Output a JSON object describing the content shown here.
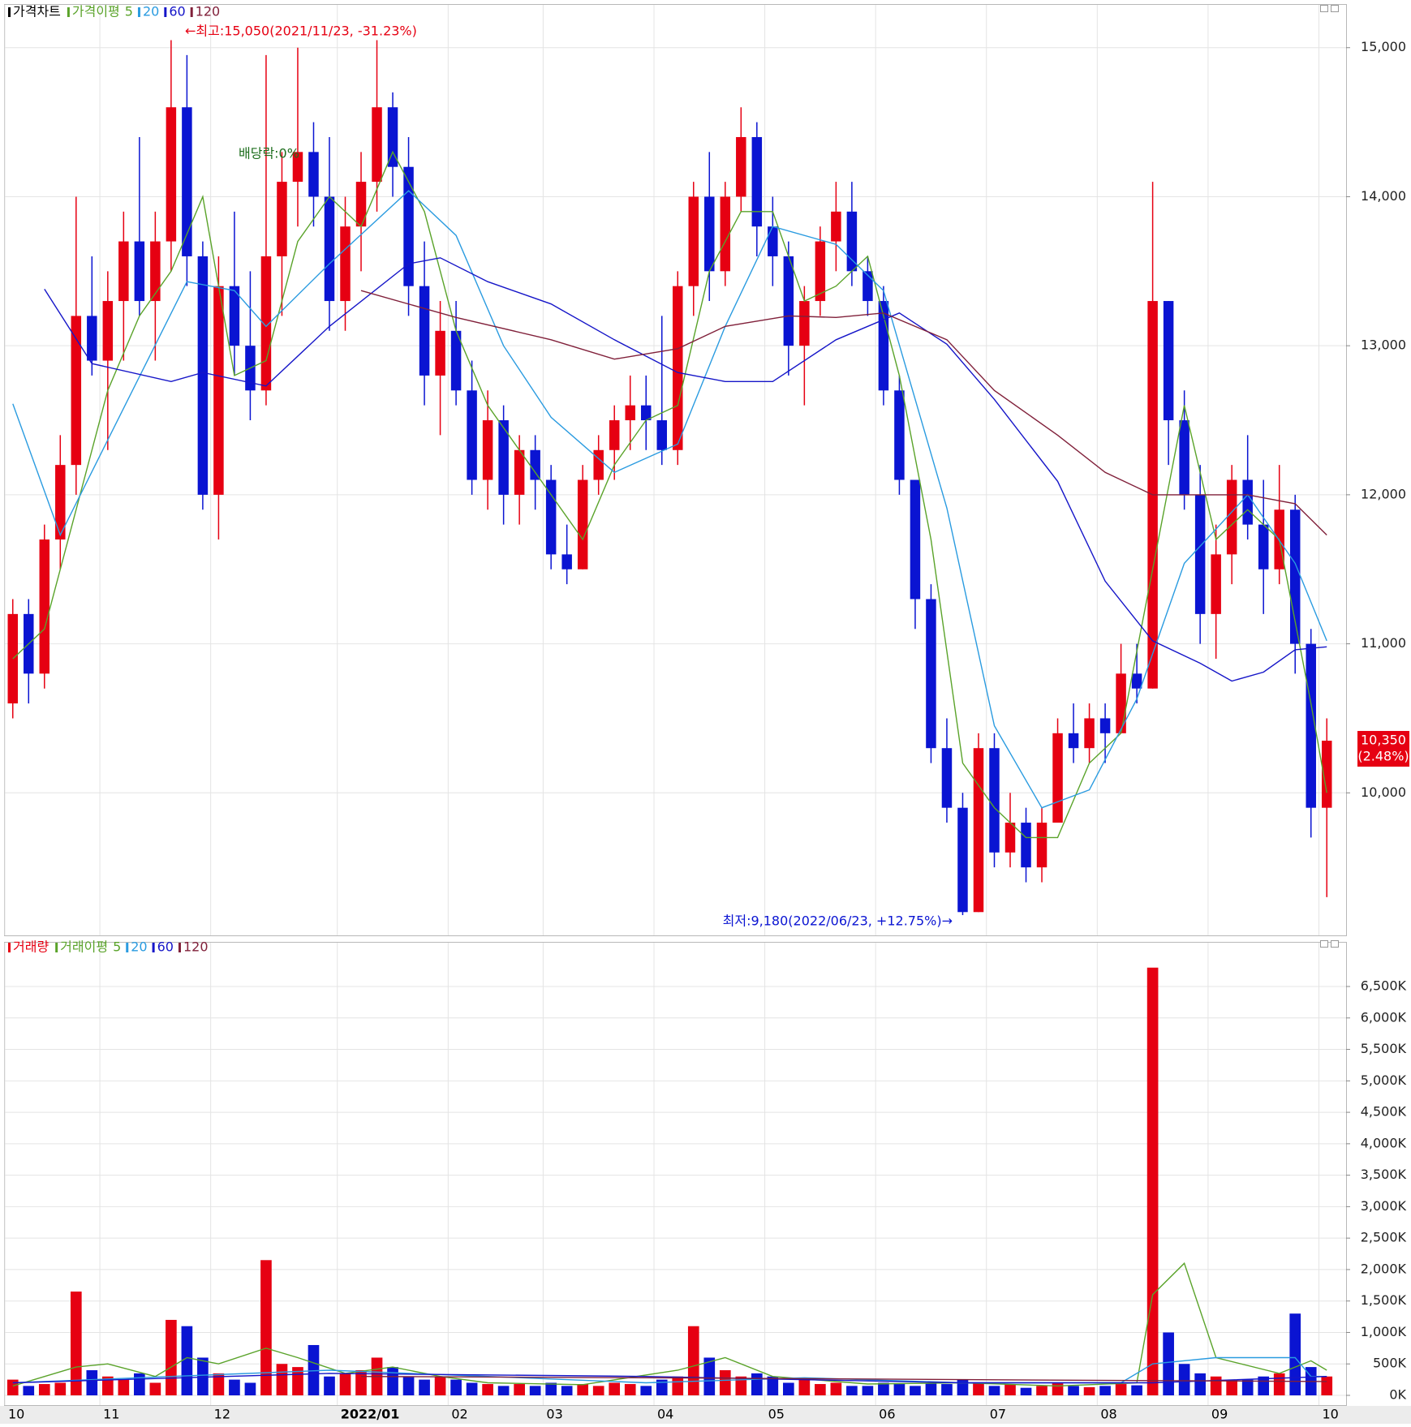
{
  "chart_data": [
    {
      "type": "candlestick",
      "title": "가격차트",
      "ma_title": "가격이평",
      "categories": [
        "10",
        null,
        null,
        null,
        null,
        null,
        "11",
        null,
        null,
        null,
        null,
        null,
        null,
        "12",
        null,
        null,
        null,
        null,
        null,
        null,
        null,
        "2022/01",
        null,
        null,
        null,
        null,
        null,
        null,
        "02",
        null,
        null,
        null,
        null,
        null,
        "03",
        null,
        null,
        null,
        null,
        null,
        null,
        "04",
        null,
        null,
        null,
        null,
        null,
        null,
        "05",
        null,
        null,
        null,
        null,
        null,
        null,
        "06",
        null,
        null,
        null,
        null,
        null,
        null,
        "07",
        null,
        null,
        null,
        null,
        null,
        null,
        "08",
        null,
        null,
        null,
        null,
        null,
        null,
        "09",
        null,
        null,
        null,
        null,
        null,
        null,
        "10"
      ],
      "open": [
        10600,
        11200,
        10800,
        11700,
        12200,
        13200,
        12900,
        13300,
        13700,
        13300,
        13700,
        14600,
        13600,
        12000,
        13400,
        13000,
        12700,
        13600,
        14100,
        14300,
        14000,
        13300,
        13800,
        14100,
        14600,
        14200,
        13400,
        12800,
        13100,
        12700,
        12100,
        12500,
        12000,
        12300,
        12100,
        11600,
        11500,
        12100,
        12300,
        12500,
        12600,
        12500,
        12300,
        13400,
        14000,
        13500,
        14000,
        14400,
        13800,
        13600,
        13000,
        13300,
        13700,
        13900,
        13500,
        13300,
        12700,
        12100,
        11300,
        10300,
        9900,
        9200,
        10300,
        9600,
        9800,
        9500,
        9800,
        10400,
        10300,
        10500,
        10400,
        10800,
        10700,
        13300,
        12500,
        12000,
        11200,
        11600,
        12100,
        11800,
        11500,
        11900,
        11000,
        9900
      ],
      "high": [
        11300,
        11300,
        11800,
        12400,
        14000,
        13600,
        13500,
        13900,
        14400,
        13900,
        15050,
        14950,
        13700,
        13600,
        13900,
        13500,
        14950,
        14300,
        15000,
        14500,
        14400,
        14000,
        14300,
        15050,
        14700,
        14400,
        13700,
        13300,
        13300,
        12900,
        12700,
        12600,
        12400,
        12400,
        12200,
        11800,
        12200,
        12400,
        12600,
        12800,
        12800,
        13200,
        13500,
        14100,
        14300,
        14100,
        14600,
        14500,
        14000,
        13700,
        13400,
        13800,
        14100,
        14100,
        13600,
        13400,
        12800,
        12100,
        11400,
        10500,
        10000,
        10400,
        10400,
        10000,
        9900,
        9900,
        10500,
        10600,
        10600,
        10600,
        11000,
        11000,
        14100,
        13300,
        12700,
        12200,
        11800,
        12200,
        12400,
        12100,
        12200,
        12000,
        11100,
        10500
      ],
      "low": [
        10500,
        10600,
        10700,
        11500,
        12000,
        12800,
        12300,
        12900,
        13200,
        12900,
        13500,
        13400,
        11900,
        11700,
        12800,
        12500,
        12600,
        13200,
        13800,
        13800,
        13100,
        13100,
        13500,
        13900,
        14000,
        13200,
        12600,
        12400,
        12600,
        12000,
        11900,
        11800,
        11800,
        11900,
        11500,
        11400,
        11500,
        12000,
        12100,
        12300,
        12300,
        12200,
        12200,
        13200,
        13300,
        13400,
        13900,
        13600,
        13400,
        12800,
        12600,
        13200,
        13500,
        13400,
        13200,
        12600,
        12000,
        11100,
        10200,
        9800,
        9180,
        9200,
        9500,
        9500,
        9400,
        9400,
        9800,
        10200,
        10200,
        10200,
        10400,
        10600,
        10700,
        12200,
        11900,
        11000,
        10900,
        11400,
        11700,
        11200,
        11400,
        10800,
        9700,
        9300
      ],
      "close": [
        11200,
        10800,
        11700,
        12200,
        13200,
        12900,
        13300,
        13700,
        13300,
        13700,
        14600,
        13600,
        12000,
        13400,
        13000,
        12700,
        13600,
        14100,
        14300,
        14000,
        13300,
        13800,
        14100,
        14600,
        14200,
        13400,
        12800,
        13100,
        12700,
        12100,
        12500,
        12000,
        12300,
        12100,
        11600,
        11500,
        12100,
        12300,
        12500,
        12600,
        12500,
        12300,
        13400,
        14000,
        13500,
        14000,
        14400,
        13800,
        13600,
        13000,
        13300,
        13700,
        13900,
        13500,
        13300,
        12700,
        12100,
        11300,
        10300,
        9900,
        9200,
        10300,
        9600,
        9800,
        9500,
        9800,
        10400,
        10300,
        10500,
        10400,
        10800,
        10700,
        13300,
        12500,
        12000,
        11200,
        11600,
        12100,
        11800,
        11500,
        11900,
        11000,
        9900,
        10350
      ],
      "up_color": "#e60012",
      "down_color": "#0a14d2",
      "series": [
        {
          "name": "5",
          "color": "#5aa32a",
          "x": [
            0,
            2,
            4,
            6,
            8,
            10,
            12,
            14,
            16,
            18,
            20,
            22,
            24,
            26,
            28,
            30,
            32,
            34,
            36,
            38,
            40,
            42,
            44,
            46,
            48,
            50,
            52,
            54,
            56,
            58,
            60,
            62,
            64,
            66,
            68,
            70,
            72,
            74,
            76,
            78,
            80,
            82,
            83
          ],
          "values": [
            10900,
            11100,
            11900,
            12700,
            13200,
            13500,
            14000,
            12800,
            12900,
            13700,
            14000,
            13800,
            14300,
            13900,
            13100,
            12600,
            12300,
            12000,
            11700,
            12200,
            12500,
            12600,
            13500,
            13900,
            13900,
            13300,
            13400,
            13600,
            12800,
            11700,
            10200,
            9900,
            9700,
            9700,
            10200,
            10400,
            11500,
            12600,
            11700,
            11900,
            11700,
            10600,
            10000
          ]
        },
        {
          "name": "20",
          "color": "#2a9be0",
          "x": [
            0,
            3,
            7,
            11,
            14,
            16,
            20,
            25,
            28,
            31,
            34,
            38,
            42,
            45,
            48,
            52,
            55,
            59,
            62,
            65,
            68,
            71,
            74,
            78,
            81,
            83
          ],
          "values": [
            12610,
            11730,
            12580,
            13430,
            13370,
            13130,
            13550,
            14040,
            13740,
            13000,
            12520,
            12150,
            12340,
            13130,
            13800,
            13680,
            13370,
            11910,
            10450,
            9900,
            10020,
            10630,
            11540,
            12000,
            11540,
            11020
          ]
        },
        {
          "name": "60",
          "color": "#1515c8",
          "x": [
            2,
            5,
            10,
            12,
            16,
            20,
            25,
            27,
            30,
            34,
            38,
            42,
            45,
            48,
            52,
            56,
            59,
            62,
            66,
            69,
            72,
            75,
            77,
            79,
            81,
            83
          ],
          "values": [
            13380,
            12880,
            12760,
            12820,
            12730,
            13130,
            13550,
            13590,
            13430,
            13280,
            13040,
            12820,
            12760,
            12760,
            13040,
            13220,
            13010,
            12640,
            12090,
            11420,
            11020,
            10870,
            10750,
            10810,
            10960,
            10980
          ]
        },
        {
          "name": "120",
          "color": "#80203a",
          "x": [
            22,
            28,
            34,
            38,
            42,
            45,
            49,
            52,
            55,
            59,
            62,
            66,
            69,
            72,
            75,
            78,
            81,
            83
          ],
          "values": [
            13370,
            13190,
            13040,
            12910,
            12980,
            13130,
            13200,
            13190,
            13220,
            13040,
            12700,
            12400,
            12150,
            12000,
            12000,
            12000,
            11940,
            11730
          ]
        }
      ],
      "ylim": [
        9060,
        15200
      ],
      "yticks": [
        {
          "value": 10000,
          "label": "10,000"
        },
        {
          "value": 11000,
          "label": "11,000"
        },
        {
          "value": 12000,
          "label": "12,000"
        },
        {
          "value": 13000,
          "label": "13,000"
        },
        {
          "value": 14000,
          "label": "14,000"
        },
        {
          "value": 15000,
          "label": "15,000"
        }
      ],
      "grid": true,
      "high_annotation": "←최고:15,050(2021/11/23, -31.23%)",
      "dividend_annotation": "배당락:0%",
      "low_annotation": "최저:9,180(2022/06/23, +12.75%)→",
      "current_price": {
        "value": 10350,
        "label": "10,350"
      },
      "current_change": "(2.48%)"
    },
    {
      "type": "bar",
      "title": "거래량",
      "ma_title": "거래이평",
      "color": "#e60012",
      "values": [
        250,
        150,
        180,
        200,
        1650,
        400,
        300,
        250,
        350,
        200,
        1200,
        1100,
        600,
        350,
        250,
        200,
        2150,
        500,
        450,
        800,
        300,
        350,
        400,
        600,
        450,
        300,
        250,
        300,
        250,
        200,
        180,
        150,
        180,
        150,
        200,
        150,
        180,
        150,
        200,
        180,
        150,
        250,
        300,
        1100,
        600,
        400,
        300,
        350,
        300,
        200,
        250,
        180,
        200,
        150,
        150,
        200,
        180,
        150,
        200,
        180,
        250,
        200,
        150,
        180,
        120,
        150,
        200,
        150,
        130,
        150,
        180,
        160,
        6800,
        1000,
        500,
        350,
        300,
        250,
        250,
        300,
        350,
        1300,
        450,
        300
      ],
      "series": [
        {
          "name": "5",
          "color": "#5aa32a",
          "x": [
            0,
            4,
            6,
            9,
            11,
            13,
            16,
            18,
            21,
            24,
            27,
            30,
            36,
            42,
            45,
            48,
            54,
            60,
            66,
            71,
            72,
            74,
            76,
            80,
            82,
            83
          ],
          "values": [
            150,
            450,
            500,
            300,
            600,
            500,
            750,
            600,
            350,
            450,
            300,
            200,
            170,
            400,
            600,
            300,
            180,
            200,
            150,
            200,
            1600,
            2100,
            600,
            350,
            550,
            400
          ]
        },
        {
          "name": "20",
          "color": "#2a9be0",
          "x": [
            0,
            10,
            20,
            30,
            40,
            50,
            60,
            70,
            72,
            76,
            81,
            82,
            83
          ],
          "values": [
            200,
            300,
            400,
            300,
            200,
            280,
            200,
            200,
            500,
            600,
            600,
            300,
            300
          ]
        },
        {
          "name": "60",
          "color": "#1515c8",
          "x": [
            0,
            20,
            40,
            60,
            72,
            83
          ],
          "values": [
            200,
            350,
            300,
            200,
            200,
            300
          ]
        },
        {
          "name": "120",
          "color": "#80203a",
          "x": [
            22,
            40,
            60,
            83
          ],
          "values": [
            300,
            280,
            250,
            220
          ]
        }
      ],
      "ylim": [
        0,
        6900
      ],
      "yticks": [
        {
          "value": 0,
          "label": "0K"
        },
        {
          "value": 500,
          "label": "500K"
        },
        {
          "value": 1000,
          "label": "1,000K"
        },
        {
          "value": 1500,
          "label": "1,500K"
        },
        {
          "value": 2000,
          "label": "2,000K"
        },
        {
          "value": 2500,
          "label": "2,500K"
        },
        {
          "value": 3000,
          "label": "3,000K"
        },
        {
          "value": 3500,
          "label": "3,500K"
        },
        {
          "value": 4000,
          "label": "4,000K"
        },
        {
          "value": 4500,
          "label": "4,500K"
        },
        {
          "value": 5000,
          "label": "5,000K"
        },
        {
          "value": 5500,
          "label": "5,500K"
        },
        {
          "value": 6000,
          "label": "6,000K"
        },
        {
          "value": 6500,
          "label": "6,500K"
        }
      ],
      "grid": true
    }
  ]
}
